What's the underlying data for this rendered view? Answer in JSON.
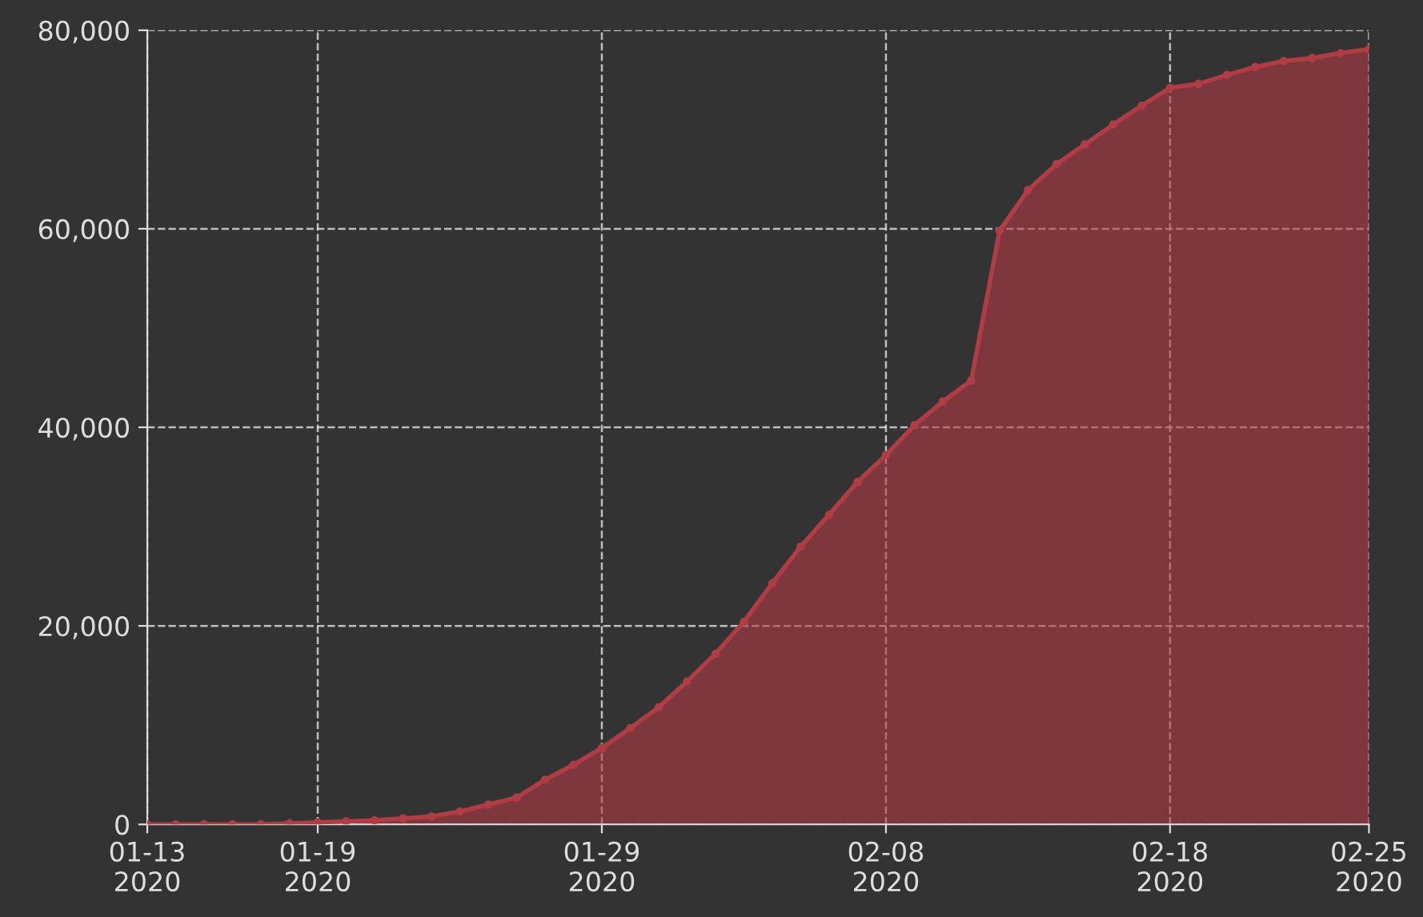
{
  "chart_data": {
    "type": "area",
    "x": [
      "2020-01-13",
      "2020-01-14",
      "2020-01-15",
      "2020-01-16",
      "2020-01-17",
      "2020-01-18",
      "2020-01-19",
      "2020-01-20",
      "2020-01-21",
      "2020-01-22",
      "2020-01-23",
      "2020-01-24",
      "2020-01-25",
      "2020-01-26",
      "2020-01-27",
      "2020-01-28",
      "2020-01-29",
      "2020-01-30",
      "2020-01-31",
      "2020-02-01",
      "2020-02-02",
      "2020-02-03",
      "2020-02-04",
      "2020-02-05",
      "2020-02-06",
      "2020-02-07",
      "2020-02-08",
      "2020-02-09",
      "2020-02-10",
      "2020-02-11",
      "2020-02-12",
      "2020-02-13",
      "2020-02-14",
      "2020-02-15",
      "2020-02-16",
      "2020-02-17",
      "2020-02-18",
      "2020-02-19",
      "2020-02-20",
      "2020-02-21",
      "2020-02-22",
      "2020-02-23",
      "2020-02-24",
      "2020-02-25"
    ],
    "series": [
      {
        "color": "#b03c44",
        "values": [
          0,
          0,
          0,
          0,
          0,
          100,
          200,
          300,
          400,
          600,
          800,
          1300,
          2000,
          2700,
          4500,
          6000,
          7700,
          9700,
          11800,
          14400,
          17200,
          20400,
          24300,
          28000,
          31200,
          34500,
          37200,
          40200,
          42600,
          44700,
          59800,
          63900,
          66500,
          68500,
          70500,
          72400,
          74200,
          74600,
          75500,
          76300,
          76900,
          77200,
          77700,
          78100
        ]
      }
    ],
    "xlim": [
      "2020-01-13",
      "2020-02-25"
    ],
    "xticks": [
      {
        "value": "2020-01-13",
        "label": "01-13\n2020"
      },
      {
        "value": "2020-01-19",
        "label": "01-19\n2020"
      },
      {
        "value": "2020-01-29",
        "label": "01-29\n2020"
      },
      {
        "value": "2020-02-08",
        "label": "02-08\n2020"
      },
      {
        "value": "2020-02-18",
        "label": "02-18\n2020"
      },
      {
        "value": "2020-02-25",
        "label": "02-25\n2020"
      }
    ],
    "ylim": [
      0,
      80000
    ],
    "yticks": [
      0,
      {
        "value": 20000,
        "label": "20,000"
      },
      {
        "value": 40000,
        "label": "40,000"
      },
      {
        "value": 60000,
        "label": "60,000"
      },
      {
        "value": 80000,
        "label": "80,000"
      }
    ],
    "grid": true,
    "marker": "circle",
    "line_style": "solid",
    "legend": false
  }
}
